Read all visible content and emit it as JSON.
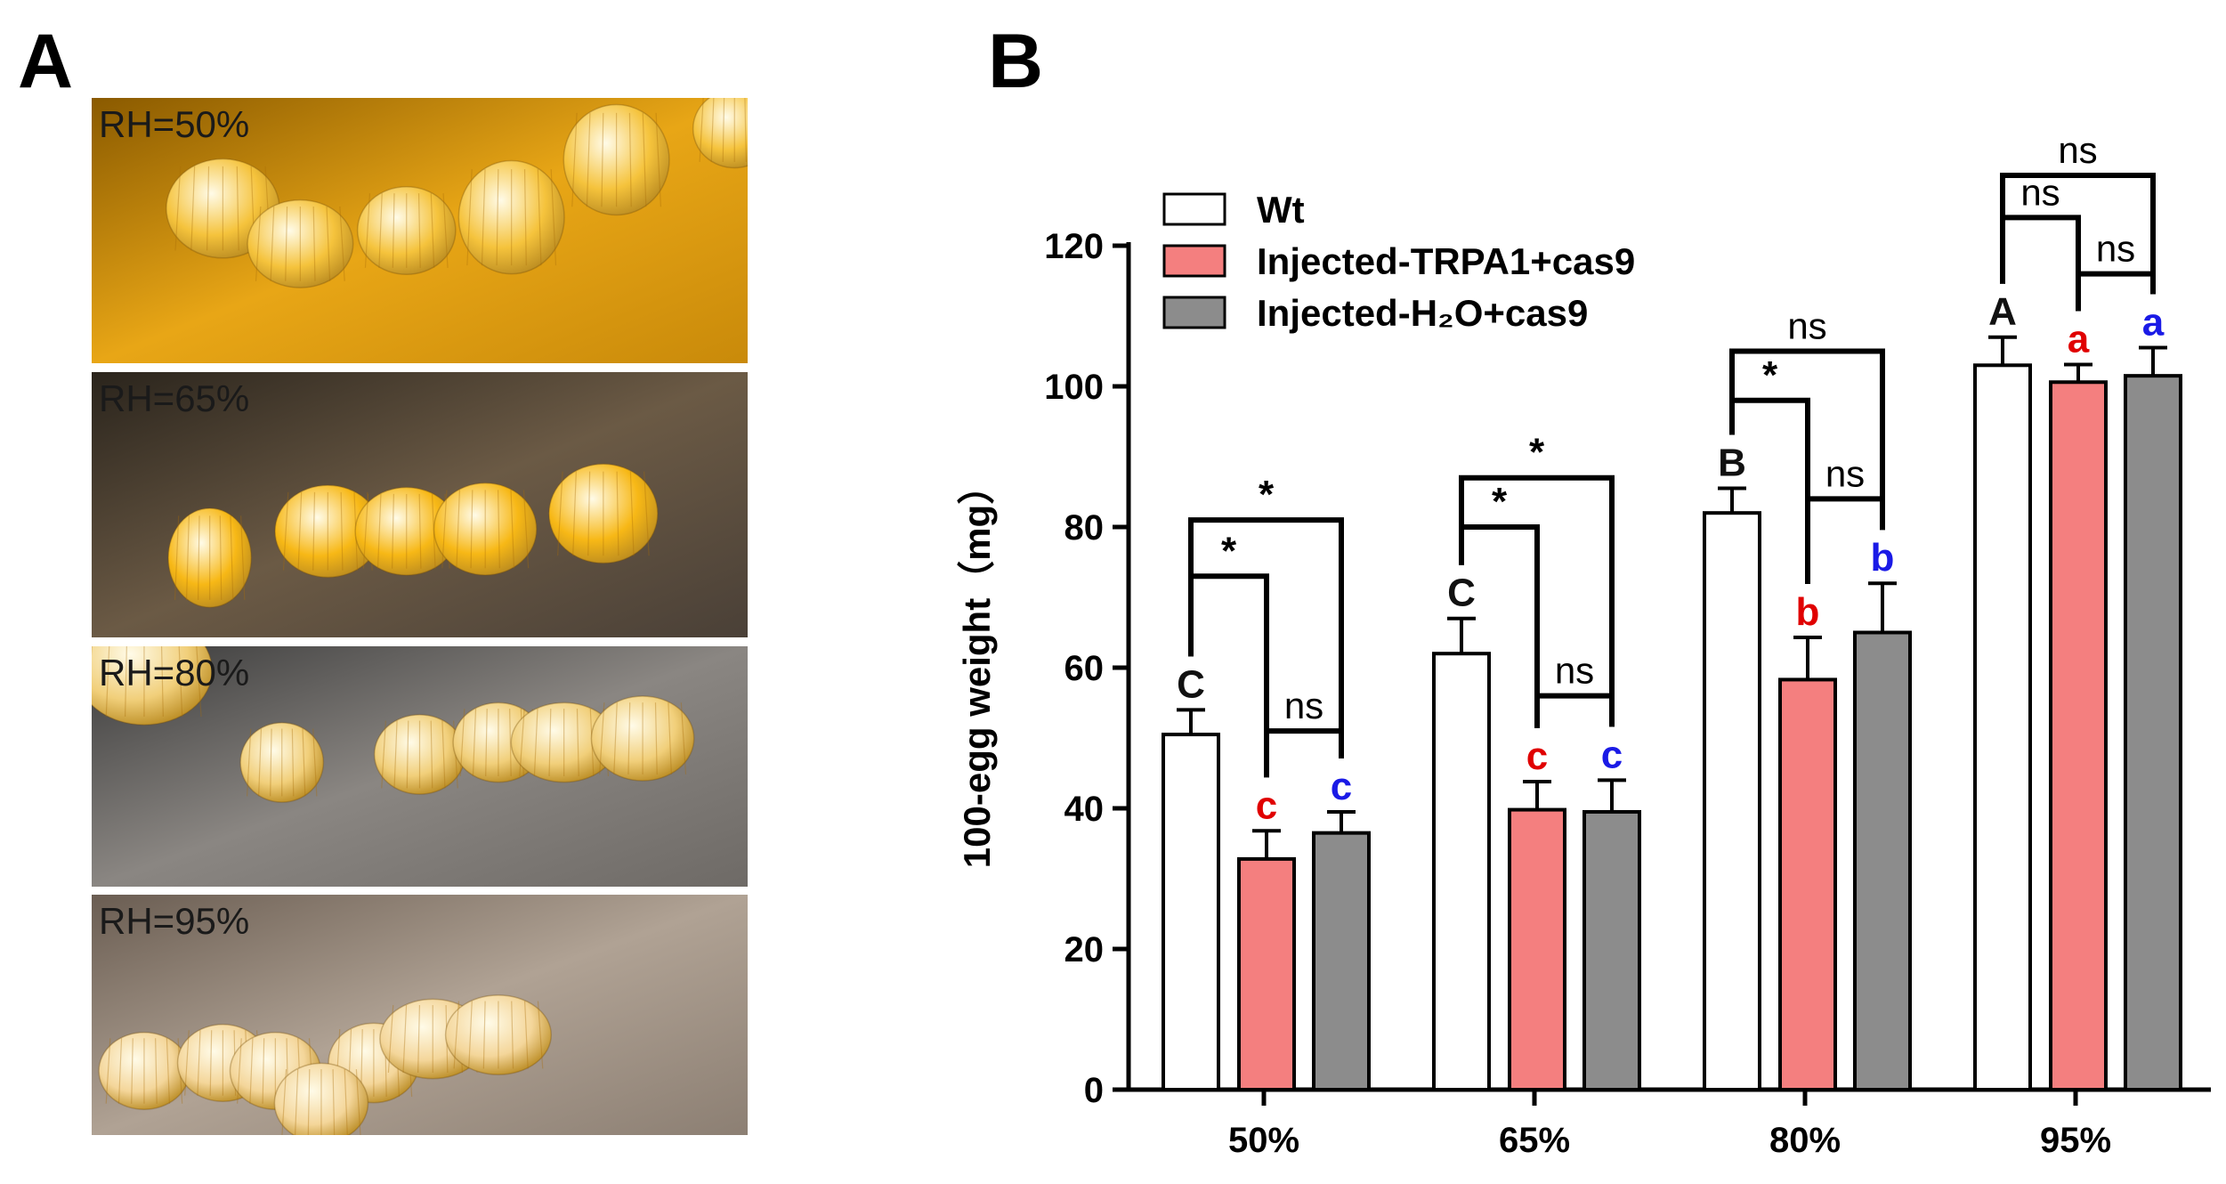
{
  "panel_a": {
    "letter": "A",
    "photos": [
      {
        "label": "RH=50%",
        "bg": [
          "#8a5a00",
          "#e8a616",
          "#c98a0a"
        ],
        "egg": "#f5c33c",
        "tone": "amber"
      },
      {
        "label": "RH=65%",
        "bg": [
          "#2a241c",
          "#6b5a45",
          "#4a4037"
        ],
        "egg": "#f7b816",
        "tone": "dark"
      },
      {
        "label": "RH=80%",
        "bg": [
          "#3a3a3a",
          "#8a8682",
          "#6e6a66"
        ],
        "egg": "#f1cf7a",
        "tone": "grey"
      },
      {
        "label": "RH=95%",
        "bg": [
          "#6a5d52",
          "#b0a294",
          "#8c7f73"
        ],
        "egg": "#f4d69a",
        "tone": "light"
      }
    ]
  },
  "panel_b": {
    "letter": "B"
  },
  "colors": {
    "wt": "#ffffff",
    "trpa1": "#f47f7f",
    "h2o": "#8c8c8c",
    "letter_black": "#111111",
    "letter_red": "#e00000",
    "letter_blue": "#1a1ae6"
  },
  "chart_data": {
    "type": "bar",
    "categories": [
      "50%",
      "65%",
      "80%",
      "95%"
    ],
    "ylabel": "100-egg weight（mg）",
    "ylim": [
      0,
      120
    ],
    "yticks": [
      "0",
      "20",
      "40",
      "60",
      "80",
      "100",
      "120"
    ],
    "legend_position": "top-left",
    "series": [
      {
        "name": "Wt",
        "values": [
          50.5,
          62,
          82,
          103
        ],
        "errors": [
          3.5,
          5,
          3.5,
          4
        ],
        "letters": [
          "C",
          "C",
          "B",
          "A"
        ],
        "color_key": "wt",
        "letter_color_key": "letter_black"
      },
      {
        "name": "Injected-TRPA1+cas9",
        "values": [
          32.8,
          39.8,
          58.3,
          100.6
        ],
        "errors": [
          4,
          4,
          6,
          2.5
        ],
        "letters": [
          "c",
          "c",
          "b",
          "a"
        ],
        "color_key": "trpa1",
        "letter_color_key": "letter_red"
      },
      {
        "name": "Injected-H₂O+cas9",
        "values": [
          36.5,
          39.5,
          65,
          101.5
        ],
        "errors": [
          3,
          4.5,
          7,
          4
        ],
        "letters": [
          "c",
          "c",
          "b",
          "a"
        ],
        "color_key": "h2o",
        "letter_color_key": "letter_blue"
      }
    ],
    "comparisons": [
      {
        "category": 0,
        "bars": [
          0,
          1
        ],
        "label": "*",
        "y": 73
      },
      {
        "category": 0,
        "bars": [
          0,
          2
        ],
        "label": "*",
        "y": 81
      },
      {
        "category": 0,
        "bars": [
          1,
          2
        ],
        "label": "ns",
        "y": 51
      },
      {
        "category": 1,
        "bars": [
          0,
          1
        ],
        "label": "*",
        "y": 80
      },
      {
        "category": 1,
        "bars": [
          0,
          2
        ],
        "label": "*",
        "y": 87
      },
      {
        "category": 1,
        "bars": [
          1,
          2
        ],
        "label": "ns",
        "y": 56
      },
      {
        "category": 2,
        "bars": [
          0,
          1
        ],
        "label": "*",
        "y": 98
      },
      {
        "category": 2,
        "bars": [
          0,
          2
        ],
        "label": "ns",
        "y": 105
      },
      {
        "category": 2,
        "bars": [
          1,
          2
        ],
        "label": "ns",
        "y": 84
      },
      {
        "category": 3,
        "bars": [
          0,
          1
        ],
        "label": "ns",
        "y": 124
      },
      {
        "category": 3,
        "bars": [
          0,
          2
        ],
        "label": "ns",
        "y": 130
      },
      {
        "category": 3,
        "bars": [
          1,
          2
        ],
        "label": "ns",
        "y": 116
      }
    ]
  }
}
